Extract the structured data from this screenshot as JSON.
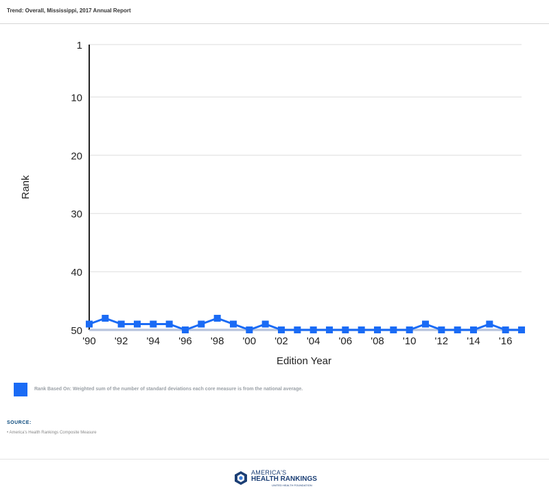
{
  "header": {
    "title": "Trend: Overall, Mississippi, 2017 Annual Report"
  },
  "colors": {
    "series": "#1a6bf5",
    "axis": "#222222",
    "grid": "#dddddd"
  },
  "chart_data": {
    "type": "line",
    "title": "",
    "xlabel": "Edition Year",
    "ylabel": "Rank",
    "y_reversed": true,
    "ylim": [
      1,
      50
    ],
    "yticks": [
      1,
      10,
      20,
      30,
      40,
      50
    ],
    "xlim": [
      1990,
      2017
    ],
    "xticks": [
      1990,
      1992,
      1994,
      1996,
      1998,
      2000,
      2002,
      2004,
      2006,
      2008,
      2010,
      2012,
      2014,
      2016
    ],
    "xtick_labels": [
      "'90",
      "'92",
      "'94",
      "'96",
      "'98",
      "'00",
      "'02",
      "'04",
      "'06",
      "'08",
      "'10",
      "'12",
      "'14",
      "'16"
    ],
    "x": [
      1990,
      1991,
      1992,
      1993,
      1994,
      1995,
      1996,
      1997,
      1998,
      1999,
      2000,
      2001,
      2002,
      2003,
      2004,
      2005,
      2006,
      2007,
      2008,
      2009,
      2010,
      2011,
      2012,
      2013,
      2014,
      2015,
      2016,
      2017
    ],
    "series": [
      {
        "name": "Rank Based On: Weighted sum of the number of standard deviations each core measure is from the national average.",
        "values": [
          49,
          48,
          49,
          49,
          49,
          49,
          50,
          49,
          48,
          49,
          50,
          49,
          50,
          50,
          50,
          50,
          50,
          50,
          50,
          50,
          50,
          49,
          50,
          50,
          50,
          49,
          50,
          50
        ]
      }
    ],
    "grid": true,
    "legend": "bottom-left"
  },
  "legend": {
    "text": "Rank Based On: Weighted sum of the number of standard deviations each core measure is from the national average."
  },
  "source": {
    "heading": "SOURCE:",
    "items": [
      "America's Health Rankings Composite Measure"
    ]
  },
  "footer": {
    "logo_line1": "AMERICA'S",
    "logo_line2": "HEALTH RANKINGS",
    "logo_line3": "UNITED HEALTH FOUNDATION"
  }
}
